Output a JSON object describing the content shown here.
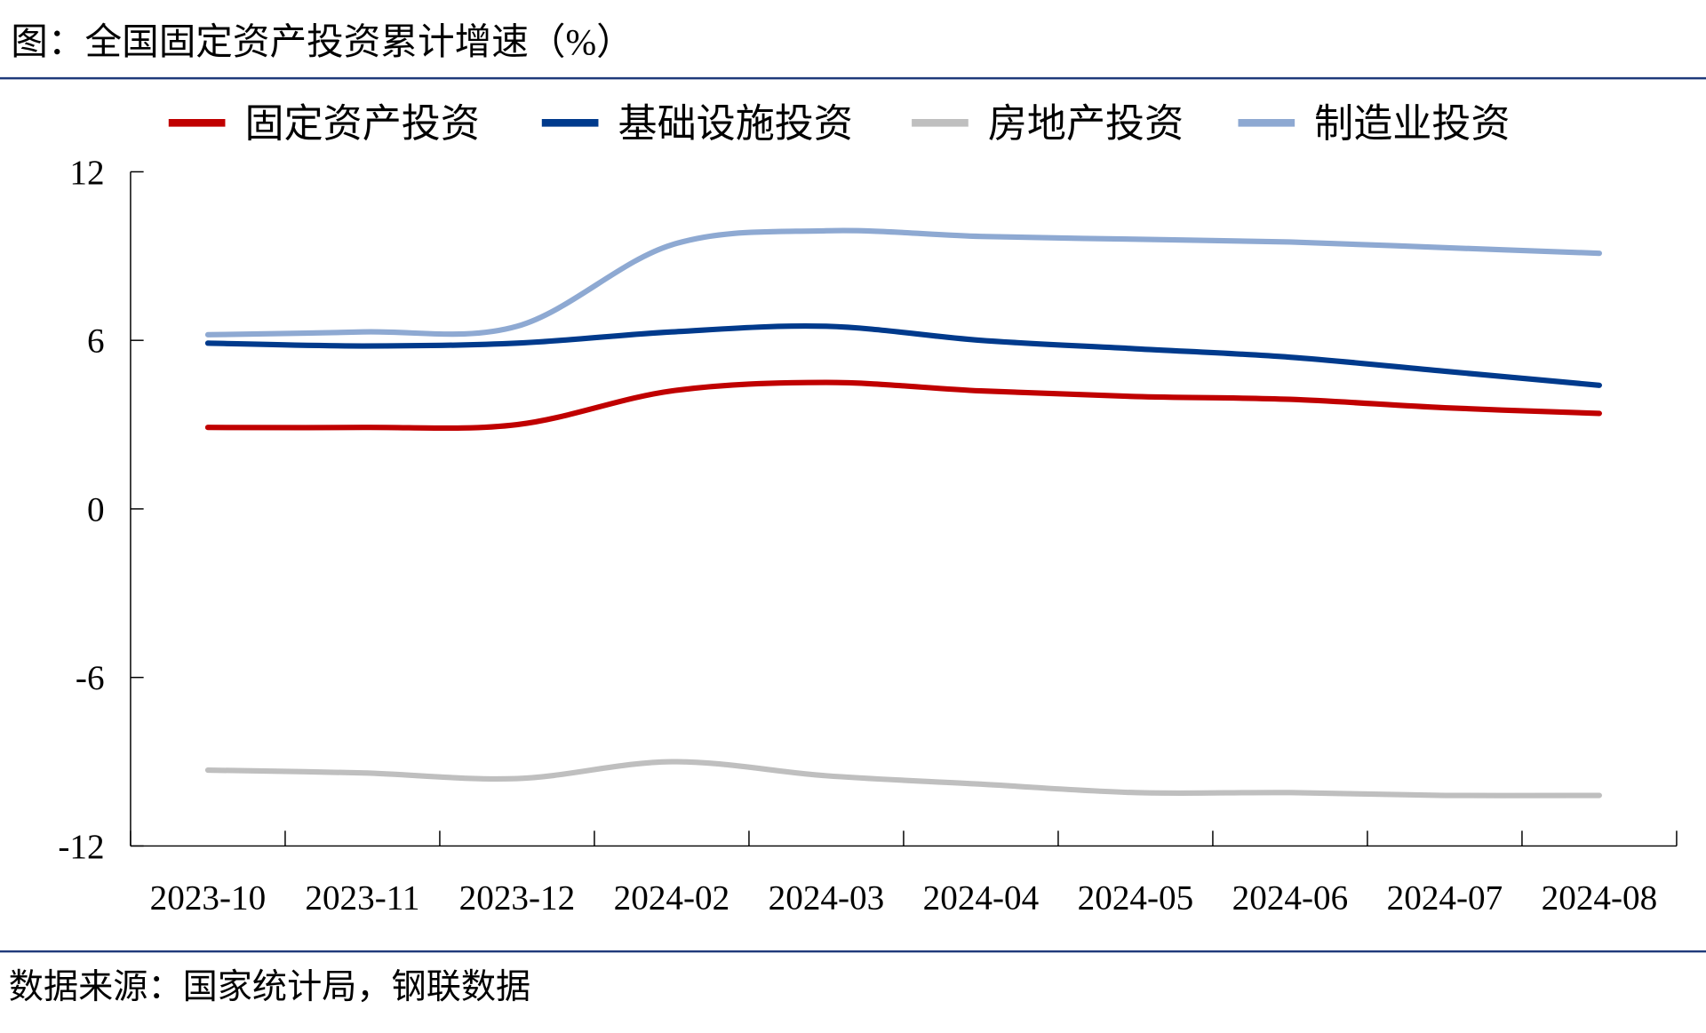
{
  "chart_data": {
    "type": "line",
    "title": "图：全国固定资产投资累计增速（%）",
    "source": "数据来源：国家统计局，钢联数据",
    "xlabel": "",
    "ylabel": "",
    "categories": [
      "2023-10",
      "2023-11",
      "2023-12",
      "2024-02",
      "2024-03",
      "2024-04",
      "2024-05",
      "2024-06",
      "2024-07",
      "2024-08"
    ],
    "ylim": [
      -12,
      12
    ],
    "yticks": [
      12,
      6,
      0,
      -6,
      -12
    ],
    "grid": false,
    "legend_position": "top",
    "series": [
      {
        "name": "固定资产投资",
        "color": "#C00000",
        "values": [
          2.9,
          2.9,
          3.0,
          4.2,
          4.5,
          4.2,
          4.0,
          3.9,
          3.6,
          3.4
        ]
      },
      {
        "name": "基础设施投资",
        "color": "#003A8C",
        "values": [
          5.9,
          5.8,
          5.9,
          6.3,
          6.5,
          6.0,
          5.7,
          5.4,
          4.9,
          4.4
        ]
      },
      {
        "name": "房地产投资",
        "color": "#BFBFBF",
        "values": [
          -9.3,
          -9.4,
          -9.6,
          -9.0,
          -9.5,
          -9.8,
          -10.1,
          -10.1,
          -10.2,
          -10.2
        ]
      },
      {
        "name": "制造业投资",
        "color": "#8EA9D2",
        "values": [
          6.2,
          6.3,
          6.5,
          9.4,
          9.9,
          9.7,
          9.6,
          9.5,
          9.3,
          9.1
        ]
      }
    ]
  }
}
